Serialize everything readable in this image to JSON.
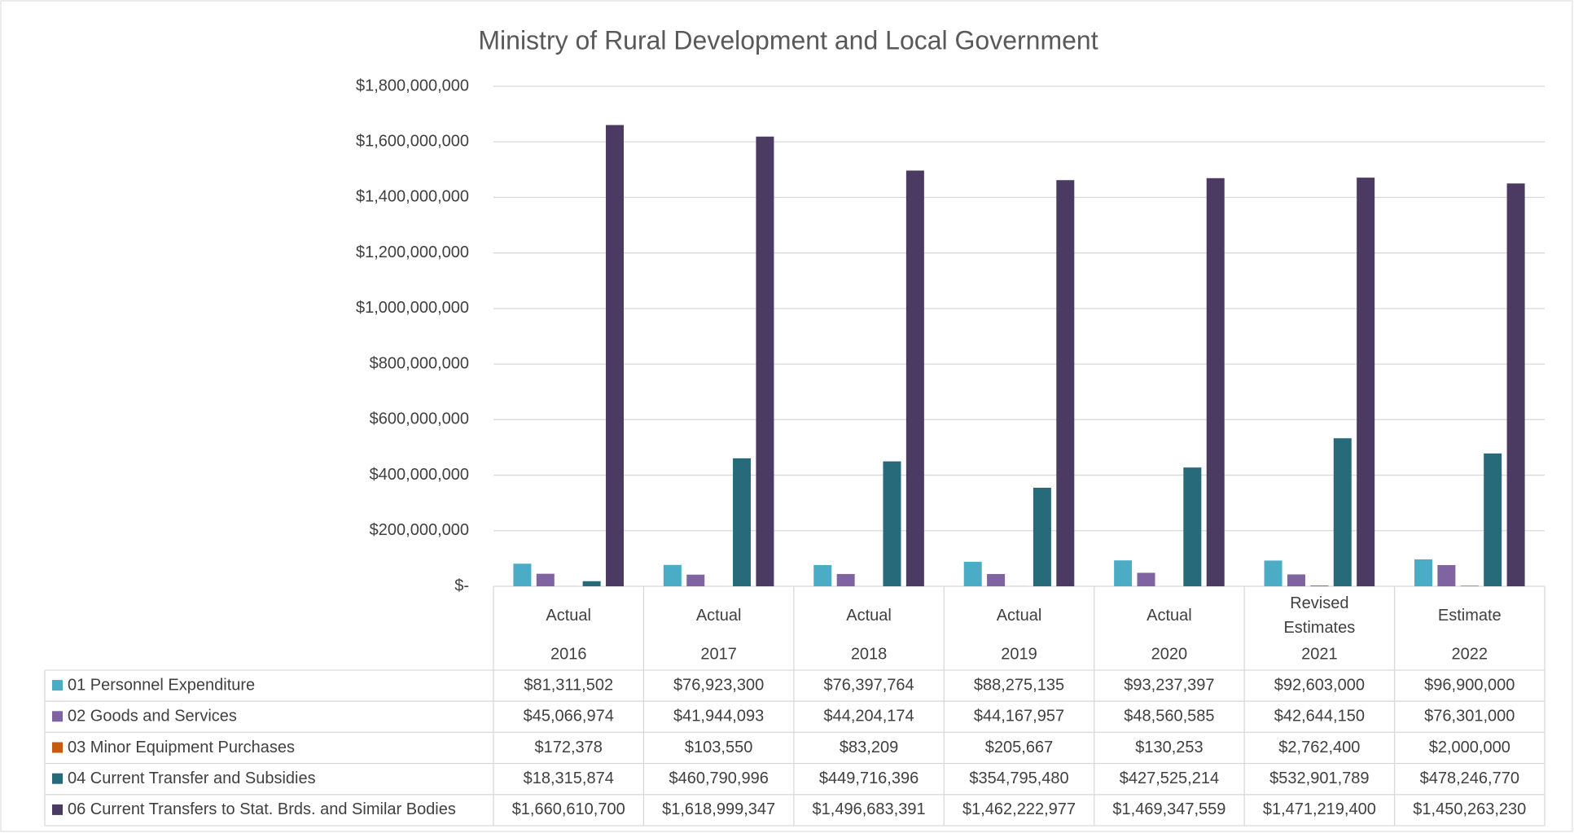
{
  "chart_data": {
    "type": "bar",
    "title": "Ministry of Rural Development and Local Government",
    "category_types": [
      "Actual",
      "Actual",
      "Actual",
      "Actual",
      "Actual",
      "Revised Estimates",
      "Estimate"
    ],
    "categories": [
      "2016",
      "2017",
      "2018",
      "2019",
      "2020",
      "2021",
      "2022"
    ],
    "ylim": [
      0,
      1800000000
    ],
    "yticks": [
      {
        "value": 0,
        "label": "$-"
      },
      {
        "value": 200000000,
        "label": "$200,000,000"
      },
      {
        "value": 400000000,
        "label": "$400,000,000"
      },
      {
        "value": 600000000,
        "label": "$600,000,000"
      },
      {
        "value": 800000000,
        "label": "$800,000,000"
      },
      {
        "value": 1000000000,
        "label": "$1,000,000,000"
      },
      {
        "value": 1200000000,
        "label": "$1,200,000,000"
      },
      {
        "value": 1400000000,
        "label": "$1,400,000,000"
      },
      {
        "value": 1600000000,
        "label": "$1,600,000,000"
      },
      {
        "value": 1800000000,
        "label": "$1,800,000,000"
      }
    ],
    "grid": true,
    "series": [
      {
        "name": "01 Personnel Expenditure",
        "color": "#4bacc6",
        "values": [
          81311502,
          76923300,
          76397764,
          88275135,
          93237397,
          92603000,
          96900000
        ],
        "value_labels": [
          "$81,311,502",
          "$76,923,300",
          "$76,397,764",
          "$88,275,135",
          "$93,237,397",
          "$92,603,000",
          "$96,900,000"
        ]
      },
      {
        "name": "02 Goods and Services",
        "color": "#8064a2",
        "values": [
          45066974,
          41944093,
          44204174,
          44167957,
          48560585,
          42644150,
          76301000
        ],
        "value_labels": [
          "$45,066,974",
          "$41,944,093",
          "$44,204,174",
          "$44,167,957",
          "$48,560,585",
          "$42,644,150",
          "$76,301,000"
        ]
      },
      {
        "name": "03 Minor Equipment Purchases",
        "color": "#c55a11",
        "values": [
          172378,
          103550,
          83209,
          205667,
          130253,
          2762400,
          2000000
        ],
        "value_labels": [
          "$172,378",
          "$103,550",
          "$83,209",
          "$205,667",
          "$130,253",
          "$2,762,400",
          "$2,000,000"
        ]
      },
      {
        "name": "04 Current Transfer and Subsidies",
        "color": "#276a7a",
        "values": [
          18315874,
          460790996,
          449716396,
          354795480,
          427525214,
          532901789,
          478246770
        ],
        "value_labels": [
          "$18,315,874",
          "$460,790,996",
          "$449,716,396",
          "$354,795,480",
          "$427,525,214",
          "$532,901,789",
          "$478,246,770"
        ]
      },
      {
        "name": "06 Current Transfers to Stat. Brds. and Similar Bodies",
        "color": "#4b3a62",
        "values": [
          1660610700,
          1618999347,
          1496683391,
          1462222977,
          1469347559,
          1471219400,
          1450263230
        ],
        "value_labels": [
          "$1,660,610,700",
          "$1,618,999,347",
          "$1,496,683,391",
          "$1,462,222,977",
          "$1,469,347,559",
          "$1,471,219,400",
          "$1,450,263,230"
        ]
      }
    ]
  }
}
